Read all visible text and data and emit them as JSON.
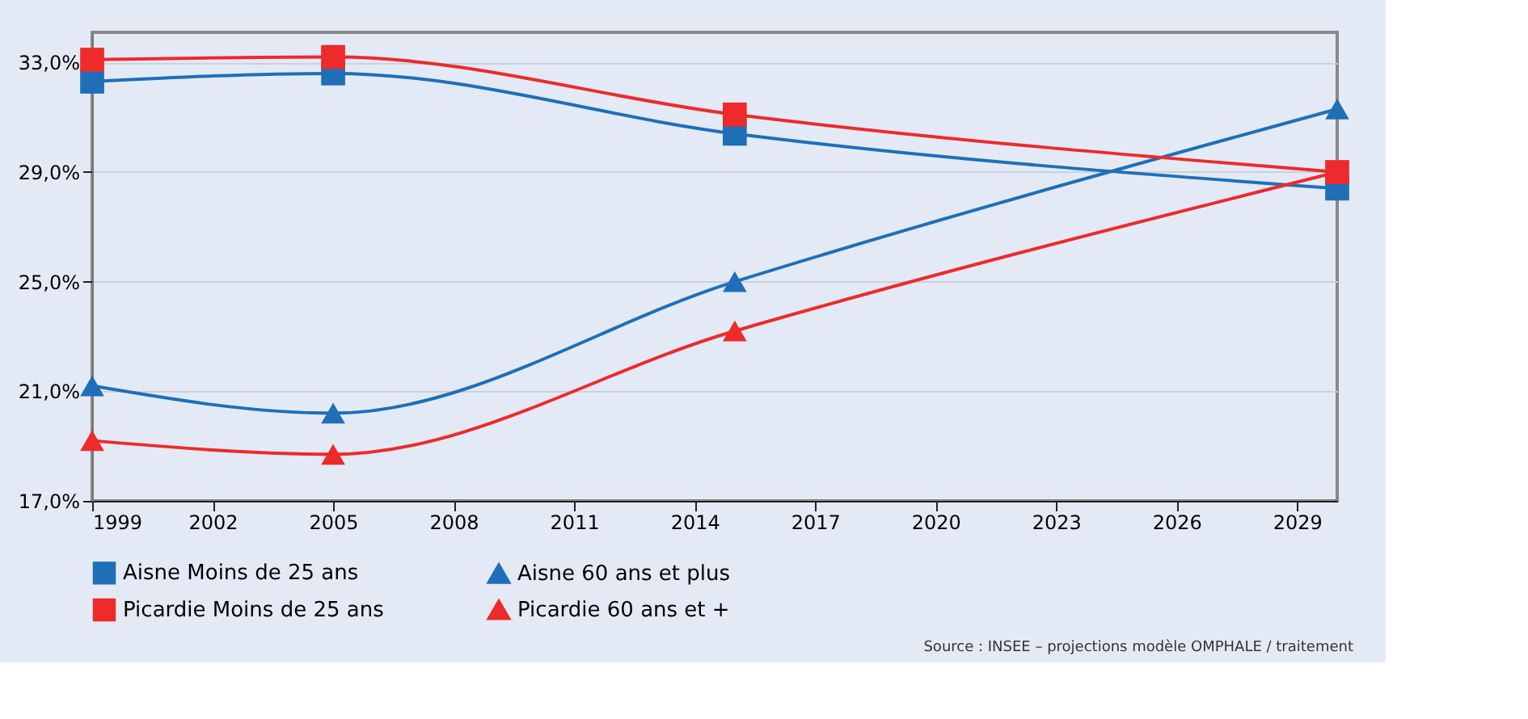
{
  "chart_data": {
    "type": "line",
    "x": [
      1999,
      2005,
      2015,
      2030
    ],
    "xlim": [
      1999,
      2030
    ],
    "xticks": [
      1999,
      2002,
      2005,
      2008,
      2011,
      2014,
      2017,
      2020,
      2023,
      2026,
      2029
    ],
    "ylim": [
      17,
      34.1
    ],
    "yticks": [
      {
        "value": 17,
        "label": "17,0%"
      },
      {
        "value": 21,
        "label": "21,0%"
      },
      {
        "value": 25,
        "label": "25,0%"
      },
      {
        "value": 29,
        "label": "29,0%"
      },
      {
        "value": 33,
        "label": "33,0%"
      }
    ],
    "grid": "y",
    "legend": "bottom",
    "series": [
      {
        "name": "Aisne Moins de 25 ans",
        "color": "#1f6fb8",
        "marker": "square",
        "values": [
          32.3,
          32.6,
          30.4,
          28.4
        ]
      },
      {
        "name": "Aisne 60 ans et plus",
        "color": "#1f6fb8",
        "marker": "triangle",
        "values": [
          21.2,
          20.2,
          25.0,
          31.3
        ]
      },
      {
        "name": "Picardie Moins de 25 ans",
        "color": "#ee2a2a",
        "marker": "square",
        "values": [
          33.1,
          33.2,
          31.1,
          29.0
        ]
      },
      {
        "name": "Picardie 60 ans et +",
        "color": "#ee2a2a",
        "marker": "triangle",
        "values": [
          19.2,
          18.7,
          23.2,
          29.0
        ]
      }
    ],
    "annotations": [
      "Source : INSEE – projections modèle OMPHALE / traitement"
    ]
  }
}
